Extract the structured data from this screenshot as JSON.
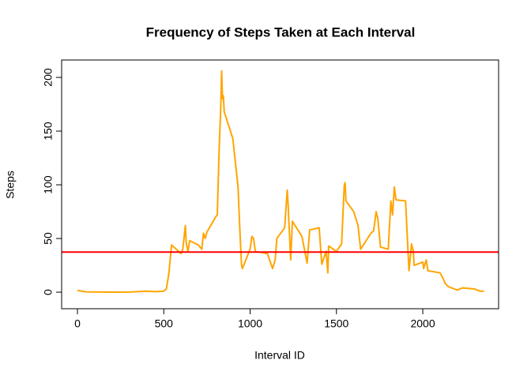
{
  "chart_data": {
    "type": "line",
    "title": "Frequency of Steps Taken at Each Interval",
    "x_label": "Interval ID",
    "y_label": "Steps",
    "x": [
      0,
      50,
      100,
      200,
      300,
      400,
      450,
      500,
      515,
      530,
      545,
      600,
      610,
      625,
      630,
      640,
      650,
      700,
      720,
      730,
      740,
      750,
      800,
      810,
      820,
      830,
      835,
      840,
      845,
      850,
      900,
      930,
      940,
      950,
      955,
      1000,
      1010,
      1020,
      1030,
      1100,
      1130,
      1145,
      1155,
      1200,
      1215,
      1220,
      1235,
      1245,
      1300,
      1330,
      1345,
      1400,
      1415,
      1440,
      1450,
      1455,
      1500,
      1530,
      1545,
      1550,
      1555,
      1600,
      1625,
      1640,
      1700,
      1715,
      1730,
      1740,
      1755,
      1800,
      1815,
      1825,
      1835,
      1845,
      1900,
      1920,
      1935,
      1945,
      1950,
      2000,
      2005,
      2020,
      2030,
      2100,
      2120,
      2130,
      2150,
      2200,
      2230,
      2300,
      2330,
      2355
    ],
    "series": [
      {
        "name": "Steps",
        "color": "#FFA500",
        "values": [
          1.7,
          0.3,
          0.2,
          0,
          0.1,
          1,
          0.5,
          1,
          3,
          18,
          44,
          36,
          40,
          62,
          46,
          38,
          48,
          44,
          40,
          55,
          50,
          56,
          70,
          72,
          130,
          172,
          206,
          180,
          183,
          168,
          143,
          98,
          60,
          26,
          22,
          40,
          52,
          50,
          38,
          36,
          22,
          30,
          50,
          60,
          95,
          82,
          30,
          66,
          52,
          27,
          58,
          60,
          26,
          38,
          18,
          43,
          38,
          45,
          99,
          102,
          85,
          75,
          62,
          40,
          55,
          57,
          75,
          68,
          42,
          40,
          85,
          72,
          98,
          86,
          85,
          20,
          45,
          38,
          25,
          28,
          22,
          30,
          20,
          18,
          12,
          8,
          5,
          2,
          4,
          3,
          1,
          1
        ]
      }
    ],
    "reference_line": {
      "value": 37.38,
      "color": "#FF0000"
    },
    "xlim": [
      -91.5,
      2439
    ],
    "ylim": [
      -15.4,
      216.2
    ],
    "xticks": [
      0,
      500,
      1000,
      1500,
      2000
    ],
    "yticks": [
      0,
      50,
      100,
      150,
      200
    ]
  }
}
